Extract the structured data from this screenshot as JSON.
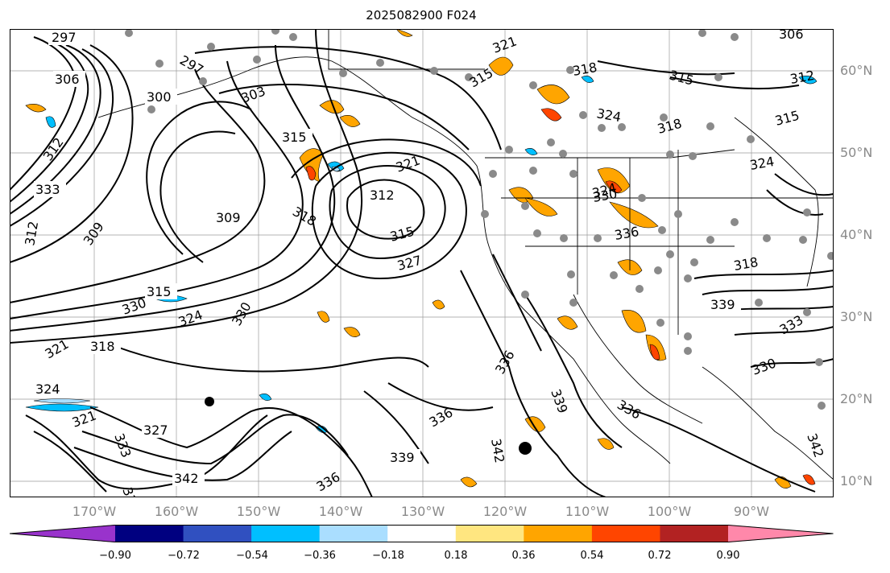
{
  "title": "2025082900 F024",
  "lon_ticks": [
    "170°W",
    "160°W",
    "150°W",
    "140°W",
    "130°W",
    "120°W",
    "110°W",
    "100°W",
    "90°W"
  ],
  "lat_ticks": [
    "60°N",
    "50°N",
    "40°N",
    "30°N",
    "20°N",
    "10°N"
  ],
  "colorbar": {
    "ticks": [
      "−0.90",
      "−0.72",
      "−0.54",
      "−0.36",
      "−0.18",
      "0.18",
      "0.36",
      "0.54",
      "0.72",
      "0.90"
    ],
    "colors": [
      "#9933cc",
      "#000080",
      "#3050c0",
      "#00bfff",
      "#aadeff",
      "#ffffff",
      "#ffe680",
      "#ffa500",
      "#ff4500",
      "#b22222",
      "#ff88aa"
    ],
    "extend": "both"
  },
  "contour_labels": [
    "297",
    "297",
    "306",
    "300",
    "303",
    "312",
    "309",
    "315",
    "318",
    "315",
    "321",
    "321",
    "324",
    "318",
    "315",
    "312",
    "318",
    "309",
    "312",
    "315",
    "327",
    "324",
    "333",
    "324",
    "318",
    "315",
    "321",
    "330",
    "330",
    "324",
    "321",
    "327",
    "336",
    "339",
    "342",
    "339",
    "336",
    "342",
    "339",
    "333",
    "336",
    "336",
    "330",
    "333",
    "339",
    "342",
    "336",
    "330",
    "306",
    "312",
    "315",
    "318",
    "324"
  ],
  "colors": {
    "positive_light": "#ffe680",
    "positive_mid": "#ffa500",
    "positive_strong": "#ff4500",
    "negative_light": "#aadeff",
    "negative_mid": "#00bfff",
    "station_dot": "#8a8a8a",
    "tick_text": "#8a8a8a"
  }
}
